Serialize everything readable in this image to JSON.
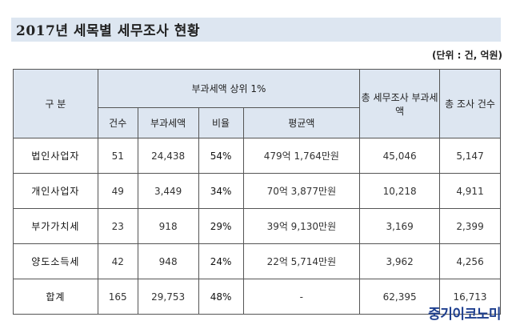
{
  "title": "2017년 세목별 세무조사 현황",
  "unit": "(단위 : 건, 억원)",
  "header": {
    "category": "구 분",
    "top1_group": "부과세액 상위 1%",
    "total_tax": "총 세무조사 부과세액",
    "total_count": "총 조사 건수",
    "count": "건수",
    "tax": "부과세액",
    "ratio": "비율",
    "average": "평균액"
  },
  "rows": [
    {
      "name": "법인사업자",
      "count": "51",
      "tax": "24,438",
      "ratio": "54%",
      "average": "479억 1,764만원",
      "total_tax": "45,046",
      "total_count": "5,147"
    },
    {
      "name": "개인사업자",
      "count": "49",
      "tax": "3,449",
      "ratio": "34%",
      "average": "70억 3,877만원",
      "total_tax": "10,218",
      "total_count": "4,911"
    },
    {
      "name": "부가가치세",
      "count": "23",
      "tax": "918",
      "ratio": "29%",
      "average": "39억 9,130만원",
      "total_tax": "3,169",
      "total_count": "2,399"
    },
    {
      "name": "양도소득세",
      "count": "42",
      "tax": "948",
      "ratio": "24%",
      "average": "22억 5,714만원",
      "total_tax": "3,962",
      "total_count": "4,256"
    },
    {
      "name": "합계",
      "count": "165",
      "tax": "29,753",
      "ratio": "48%",
      "average": "-",
      "total_tax": "62,395",
      "total_count": "16,713"
    }
  ],
  "brand": "중기이코노미",
  "colors": {
    "header_bg": "#dde6f1",
    "brand": "#1e3f8f"
  }
}
